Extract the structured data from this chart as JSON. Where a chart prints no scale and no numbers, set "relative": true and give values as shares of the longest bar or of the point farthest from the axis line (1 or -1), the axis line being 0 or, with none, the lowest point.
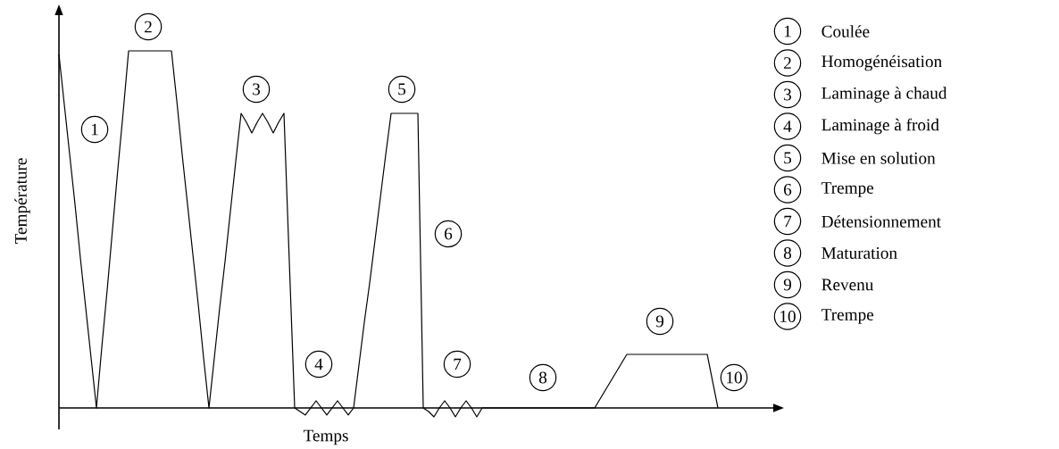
{
  "chart_data": {
    "type": "line",
    "relative": true,
    "tick_labels": false,
    "color": "#000000",
    "xlabel": "Temps",
    "ylabel": "Température",
    "categories": [
      null,
      null,
      null,
      null,
      null,
      null,
      null,
      null,
      null,
      null,
      null,
      null,
      null,
      null,
      null,
      null,
      null,
      null,
      null,
      null,
      null,
      null,
      null,
      null,
      null,
      null,
      null,
      null,
      null,
      null,
      null,
      null,
      null,
      null,
      null,
      null,
      null,
      null,
      null,
      null,
      null,
      null,
      null,
      null,
      null,
      null,
      null,
      null,
      null,
      null,
      null,
      null,
      null,
      null,
      null,
      null,
      null,
      null,
      null,
      null,
      null,
      null,
      null,
      null,
      null,
      null,
      null,
      null,
      null,
      null,
      null,
      null,
      null,
      null,
      null,
      null,
      null,
      null,
      null,
      null,
      null,
      null,
      null,
      null,
      null,
      null,
      null,
      null,
      null,
      null,
      null,
      null,
      null,
      null,
      null,
      null,
      null,
      null,
      null,
      null,
      null,
      null,
      null,
      null,
      null,
      null,
      null,
      null,
      null,
      null,
      null,
      null,
      null,
      null,
      null,
      null,
      null,
      null,
      null,
      null,
      null,
      null,
      null,
      null
    ],
    "values": [
      0.99,
      0.85,
      0.71,
      0.57,
      0.42,
      0.28,
      0.14,
      0,
      0.17,
      0.33,
      0.5,
      0.67,
      0.83,
      1,
      1,
      1,
      1,
      1,
      1,
      1,
      1,
      1,
      0.86,
      0.71,
      0.57,
      0.43,
      0.29,
      0.14,
      0,
      0.14,
      0.28,
      0.41,
      0.55,
      0.69,
      0.825,
      0.8,
      0.77,
      0.8,
      0.825,
      0.8,
      0.77,
      0.8,
      0.825,
      0.41,
      0,
      -0.01,
      -0.02,
      0,
      0.02,
      0,
      -0.02,
      0,
      0.02,
      0,
      -0.02,
      0,
      0.12,
      0.24,
      0.35,
      0.47,
      0.59,
      0.71,
      0.825,
      0.825,
      0.825,
      0.825,
      0.825,
      0.825,
      0,
      -0.01,
      -0.025,
      0,
      0.02,
      0,
      -0.025,
      0,
      0.02,
      0,
      -0.025,
      0,
      0,
      0,
      0,
      0,
      0,
      0,
      0,
      0,
      0,
      0,
      0,
      0,
      0,
      0,
      0,
      0,
      0,
      0,
      0,
      0,
      0,
      0.025,
      0.05,
      0.075,
      0.1,
      0.125,
      0.15,
      0.15,
      0.15,
      0.15,
      0.15,
      0.15,
      0.15,
      0.15,
      0.15,
      0.15,
      0.15,
      0.15,
      0.15,
      0.15,
      0.15,
      0.15,
      0.075,
      0
    ],
    "annotations": [
      "1",
      "2",
      "3",
      "4",
      "5",
      "6",
      "7",
      "8",
      "9",
      "10",
      "Coulée",
      "Homogénéisation",
      "Laminage à chaud",
      "Laminage à froid",
      "Mise en solution",
      "Trempe",
      "Détensionnement",
      "Maturation",
      "Revenu",
      "Trempe"
    ]
  }
}
